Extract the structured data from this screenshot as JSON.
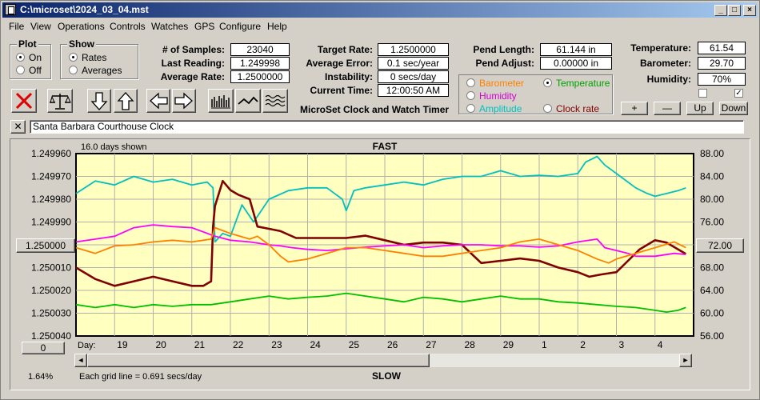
{
  "window": {
    "title": "C:\\microset\\2024_03_04.mst"
  },
  "menu": [
    "File",
    "View",
    "Operations",
    "Controls",
    "Watches",
    "GPS",
    "Configure",
    "Help"
  ],
  "plot_group": {
    "title": "Plot",
    "on": "On",
    "off": "Off",
    "selected": "On"
  },
  "show_group": {
    "title": "Show",
    "rates": "Rates",
    "averages": "Averages",
    "selected": "Rates"
  },
  "stats": {
    "samples_label": "# of Samples:",
    "samples": "23040",
    "last_label": "Last Reading:",
    "last": "1.249998",
    "avg_label": "Average Rate:",
    "avg": "1.2500000"
  },
  "timing": {
    "target_label": "Target Rate:",
    "target": "1.2500000",
    "error_label": "Average Error:",
    "error": "0.1 sec/year",
    "instability_label": "Instability:",
    "instability": "0 secs/day",
    "time_label": "Current Time:",
    "time": "12:00:50 AM",
    "caption": "MicroSet Clock and Watch Timer"
  },
  "pend": {
    "length_label": "Pend Length:",
    "length": "61.144 in",
    "adjust_label": "Pend Adjust:",
    "adjust": "0.00000 in"
  },
  "sensor_select": {
    "barometer": "Barometer",
    "temperature": "Temperature",
    "humidity": "Humidity",
    "amplitude": "Amplitude",
    "clock_rate": "Clock rate",
    "selected": "Temperature"
  },
  "env": {
    "temp_label": "Temperature:",
    "temp": "61.54",
    "baro_label": "Barometer:",
    "baro": "29.70",
    "hum_label": "Humidity:",
    "hum": "70%"
  },
  "adjust_buttons": {
    "plus": "+",
    "minus": "—",
    "up": "Up",
    "down": "Down"
  },
  "description": {
    "close": "✕",
    "text": "Santa Barbara Courthouse Clock"
  },
  "chart": {
    "days_shown": "16.0 days shown",
    "top_label": "FAST",
    "bottom_label": "SLOW",
    "center_button": "1.250000",
    "right_button": "72.00",
    "zero_button": "0",
    "percent": "1.64%",
    "grid_note": "Each grid line = 0.691 secs/day",
    "day_label": "Day:"
  },
  "colors": {
    "plot_bg": "#ffffc0",
    "rate": "#800000",
    "temperature": "#00c0c0",
    "humidity": "#ff00ff",
    "barometer": "#ff8000",
    "amplitude": "#00c000"
  },
  "chart_data": {
    "type": "line",
    "title": "",
    "xlabel": "Day:",
    "x_ticks": [
      "19",
      "20",
      "21",
      "22",
      "23",
      "24",
      "25",
      "26",
      "27",
      "28",
      "29",
      "1",
      "2",
      "3",
      "4"
    ],
    "x_range_days": [
      18.0,
      34.0
    ],
    "y_left_ticks": [
      "1.249960",
      "1.249970",
      "1.249980",
      "1.249990",
      "1.250000",
      "1.250010",
      "1.250020",
      "1.250030",
      "1.250040"
    ],
    "y_left_range": [
      1.24996,
      1.25004
    ],
    "y_left_inverted": true,
    "y_right_ticks": [
      "88.00",
      "84.00",
      "80.00",
      "76.00",
      "72.00",
      "68.00",
      "64.00",
      "60.00",
      "56.00"
    ],
    "y_right_range": [
      56,
      88
    ],
    "grid": true,
    "series": [
      {
        "name": "Temperature",
        "color": "#00c0c0",
        "axis": "right",
        "x": [
          18.0,
          18.5,
          19.0,
          19.5,
          20.0,
          20.5,
          21.0,
          21.4,
          21.55,
          21.6,
          21.8,
          22.0,
          22.3,
          22.6,
          23.0,
          23.5,
          24.0,
          24.5,
          24.9,
          25.0,
          25.2,
          25.5,
          26.0,
          26.5,
          27.0,
          27.5,
          28.0,
          28.5,
          29.0,
          29.5,
          30.0,
          30.5,
          31.0,
          31.2,
          31.5,
          31.7,
          32.0,
          32.3,
          32.5,
          32.8,
          33.0,
          33.3,
          33.6,
          33.8
        ],
        "y": [
          81.0,
          83.2,
          82.5,
          84.0,
          83.0,
          83.5,
          82.5,
          83.0,
          82.0,
          72.5,
          74.0,
          73.5,
          79.0,
          76.0,
          80.0,
          81.5,
          82.0,
          82.0,
          80.0,
          78.0,
          81.5,
          82.0,
          82.5,
          83.0,
          82.5,
          83.5,
          84.0,
          84.0,
          85.0,
          84.0,
          84.2,
          84.0,
          84.5,
          86.5,
          87.5,
          86.0,
          84.5,
          83.0,
          82.0,
          81.0,
          80.5,
          81.0,
          81.5,
          82.0
        ]
      },
      {
        "name": "Clock rate",
        "color": "#800000",
        "axis": "left",
        "x": [
          18.0,
          18.5,
          19.0,
          19.5,
          20.0,
          20.5,
          21.0,
          21.3,
          21.5,
          21.55,
          21.6,
          21.8,
          22.0,
          22.2,
          22.5,
          22.7,
          23.0,
          23.3,
          23.7,
          24.0,
          24.5,
          25.0,
          25.5,
          26.0,
          26.5,
          27.0,
          27.5,
          28.0,
          28.5,
          29.0,
          29.5,
          30.0,
          30.5,
          31.0,
          31.3,
          31.6,
          32.0,
          32.3,
          32.6,
          33.0,
          33.3,
          33.6,
          33.8
        ],
        "y": [
          1.25001,
          1.250015,
          1.250018,
          1.250016,
          1.250014,
          1.250016,
          1.250018,
          1.250018,
          1.250016,
          1.249992,
          1.249983,
          1.249972,
          1.249976,
          1.249978,
          1.24998,
          1.249992,
          1.249993,
          1.249994,
          1.249997,
          1.249997,
          1.249997,
          1.249997,
          1.249996,
          1.249998,
          1.25,
          1.249999,
          1.249999,
          1.25,
          1.250008,
          1.250007,
          1.250006,
          1.250007,
          1.25001,
          1.250012,
          1.250014,
          1.250013,
          1.250012,
          1.250007,
          1.250002,
          1.249998,
          1.249999,
          1.250002,
          1.250004
        ]
      },
      {
        "name": "Humidity",
        "color": "#ff00ff",
        "axis": "right",
        "x": [
          18.0,
          18.5,
          19.0,
          19.5,
          20.0,
          20.5,
          21.0,
          21.6,
          22.0,
          22.5,
          23.0,
          23.3,
          23.6,
          24.0,
          24.5,
          25.0,
          25.5,
          26.0,
          26.5,
          27.0,
          27.5,
          28.0,
          28.5,
          29.0,
          29.5,
          30.0,
          30.5,
          31.0,
          31.5,
          31.7,
          32.0,
          32.3,
          32.5,
          33.0,
          33.5,
          33.8
        ],
        "y": [
          72.5,
          73.0,
          73.5,
          75.0,
          75.5,
          75.2,
          75.0,
          73.5,
          72.8,
          72.5,
          72.0,
          71.8,
          71.5,
          71.2,
          71.0,
          71.3,
          71.6,
          71.8,
          72.0,
          71.5,
          71.8,
          72.0,
          72.0,
          71.8,
          71.8,
          71.6,
          71.8,
          72.5,
          73.0,
          71.5,
          71.0,
          70.5,
          70.0,
          70.0,
          70.5,
          70.3
        ]
      },
      {
        "name": "Barometer",
        "color": "#ff8000",
        "axis": "right",
        "x": [
          18.0,
          18.5,
          19.0,
          19.5,
          20.0,
          20.5,
          21.0,
          21.5,
          21.6,
          22.0,
          22.5,
          22.7,
          23.0,
          23.3,
          23.5,
          24.0,
          24.5,
          25.0,
          25.5,
          26.0,
          26.5,
          27.0,
          27.5,
          28.0,
          28.5,
          29.0,
          29.5,
          30.0,
          30.5,
          31.0,
          31.5,
          31.8,
          32.0,
          32.5,
          33.0,
          33.5,
          33.8
        ],
        "y": [
          71.5,
          70.5,
          71.8,
          72.0,
          72.5,
          72.8,
          72.5,
          73.0,
          75.0,
          74.0,
          73.0,
          73.5,
          72.0,
          70.0,
          69.0,
          69.5,
          70.5,
          71.5,
          71.5,
          71.0,
          70.5,
          70.0,
          70.0,
          70.5,
          71.0,
          71.5,
          72.5,
          73.0,
          72.0,
          71.0,
          69.5,
          68.8,
          69.5,
          70.5,
          71.5,
          72.5,
          71.5
        ]
      },
      {
        "name": "Amplitude",
        "color": "#00c000",
        "axis": "right",
        "x": [
          18.0,
          18.5,
          19.0,
          19.5,
          20.0,
          20.5,
          21.0,
          21.5,
          22.0,
          22.5,
          23.0,
          23.5,
          24.0,
          24.5,
          25.0,
          25.5,
          26.0,
          26.5,
          27.0,
          27.5,
          28.0,
          28.5,
          29.0,
          29.5,
          30.0,
          30.5,
          31.0,
          31.5,
          32.0,
          32.5,
          33.0,
          33.3,
          33.6,
          33.8
        ],
        "y": [
          61.5,
          61.0,
          61.5,
          61.0,
          61.5,
          61.2,
          61.5,
          61.5,
          62.0,
          62.5,
          63.0,
          62.5,
          62.8,
          63.0,
          63.5,
          63.0,
          62.5,
          62.0,
          62.8,
          62.5,
          62.0,
          62.5,
          63.0,
          62.5,
          62.5,
          62.0,
          61.8,
          61.5,
          61.2,
          61.0,
          60.5,
          60.2,
          60.5,
          61.0
        ]
      }
    ]
  }
}
